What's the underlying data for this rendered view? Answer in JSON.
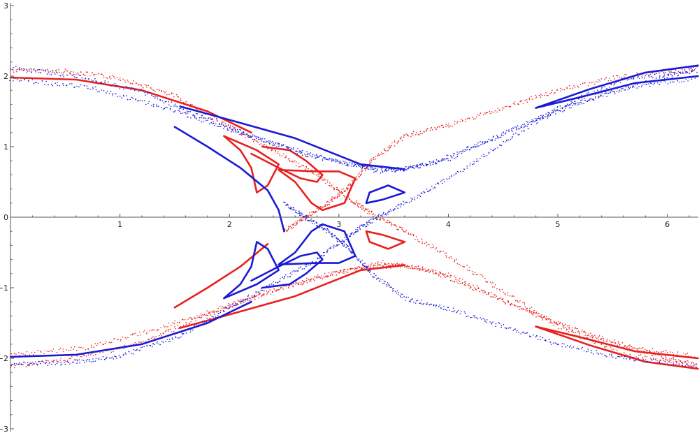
{
  "chart_data": {
    "type": "scatter",
    "title": "",
    "xlabel": "",
    "ylabel": "",
    "xlim": [
      0,
      6.2832
    ],
    "ylim": [
      -3,
      3
    ],
    "grid": false,
    "legend": "none",
    "x_ticks": [
      1,
      2,
      3,
      4,
      5,
      6
    ],
    "x_tick_labels": [
      "1",
      "2",
      "3",
      "4",
      "5",
      "6"
    ],
    "y_ticks": [
      -3,
      -2,
      -1,
      0,
      1,
      2,
      3
    ],
    "y_tick_labels": [
      "−3",
      "−2",
      "−1",
      "0",
      "1",
      "2",
      "3"
    ],
    "colors": {
      "red": "#e8201e",
      "blue": "#1a1ad6"
    },
    "series": [
      {
        "color": "red",
        "curves": [
          {
            "style": "scatter",
            "points": [
              [
                0,
                2.08
              ],
              [
                0.5,
                2.07
              ],
              [
                1.0,
                1.97
              ],
              [
                1.5,
                1.72
              ],
              [
                2.0,
                1.28
              ],
              [
                2.4,
                0.95
              ],
              [
                2.8,
                0.6
              ],
              [
                3.1,
                0.25
              ],
              [
                3.3,
                0.05
              ],
              [
                3.6,
                -0.2
              ],
              [
                4.0,
                -0.55
              ],
              [
                4.5,
                -1.05
              ],
              [
                5.0,
                -1.55
              ],
              [
                5.6,
                -1.95
              ],
              [
                6.28,
                -2.08
              ]
            ]
          },
          {
            "style": "scatter",
            "points": [
              [
                0,
                -2.12
              ],
              [
                0.6,
                -2.0
              ],
              [
                1.2,
                -1.78
              ],
              [
                1.7,
                -1.45
              ],
              [
                2.2,
                -1.15
              ],
              [
                2.7,
                -0.88
              ],
              [
                3.2,
                -0.72
              ],
              [
                3.6,
                -0.68
              ],
              [
                4.0,
                -0.82
              ],
              [
                4.6,
                -1.25
              ],
              [
                5.2,
                -1.62
              ],
              [
                5.8,
                -1.9
              ],
              [
                6.28,
                -2.12
              ]
            ]
          },
          {
            "style": "scatter",
            "points": [
              [
                0,
                -1.95
              ],
              [
                0.7,
                -1.85
              ],
              [
                1.3,
                -1.6
              ],
              [
                1.9,
                -1.3
              ],
              [
                2.4,
                -1.05
              ],
              [
                2.9,
                -0.82
              ],
              [
                3.4,
                -0.64
              ],
              [
                3.8,
                -0.74
              ],
              [
                4.3,
                -1.05
              ],
              [
                4.9,
                -1.45
              ],
              [
                5.5,
                -1.8
              ],
              [
                6.28,
                -1.98
              ]
            ]
          },
          {
            "style": "scatter",
            "points": [
              [
                2.5,
                -0.2
              ],
              [
                2.7,
                0.0
              ],
              [
                2.9,
                0.2
              ],
              [
                3.1,
                0.45
              ],
              [
                3.3,
                0.8
              ],
              [
                3.6,
                1.15
              ],
              [
                4.0,
                1.3
              ],
              [
                4.5,
                1.55
              ],
              [
                5.0,
                1.8
              ],
              [
                5.6,
                2.0
              ],
              [
                6.28,
                2.1
              ]
            ]
          },
          {
            "style": "line",
            "points": [
              [
                1.55,
                -1.57
              ],
              [
                2.0,
                -1.38
              ],
              [
                2.6,
                -1.12
              ],
              [
                3.2,
                -0.75
              ],
              [
                3.6,
                -0.68
              ]
            ]
          },
          {
            "style": "line",
            "points": [
              [
                1.5,
                -1.28
              ],
              [
                1.8,
                -1.0
              ],
              [
                2.1,
                -0.7
              ],
              [
                2.35,
                -0.38
              ]
            ]
          },
          {
            "style": "line",
            "points": [
              [
                2.45,
                0.67
              ],
              [
                2.6,
                0.5
              ],
              [
                2.75,
                0.2
              ],
              [
                2.85,
                0.1
              ],
              [
                3.05,
                0.2
              ],
              [
                3.15,
                0.55
              ],
              [
                3.0,
                0.65
              ],
              [
                2.8,
                0.65
              ],
              [
                2.45,
                0.67
              ]
            ]
          },
          {
            "style": "line",
            "points": [
              [
                1.95,
                1.15
              ],
              [
                2.25,
                0.95
              ],
              [
                2.45,
                0.75
              ],
              [
                2.35,
                0.45
              ],
              [
                2.25,
                0.35
              ],
              [
                2.2,
                0.7
              ],
              [
                2.1,
                0.95
              ],
              [
                1.95,
                1.15
              ]
            ]
          },
          {
            "style": "line",
            "points": [
              [
                2.2,
                0.9
              ],
              [
                2.45,
                0.7
              ],
              [
                2.65,
                0.55
              ],
              [
                2.8,
                0.5
              ],
              [
                2.85,
                0.6
              ],
              [
                2.7,
                0.8
              ],
              [
                2.55,
                0.95
              ],
              [
                2.3,
                1.0
              ]
            ]
          },
          {
            "style": "line",
            "points": [
              [
                3.25,
                -0.2
              ],
              [
                3.4,
                -0.25
              ],
              [
                3.6,
                -0.35
              ],
              [
                3.45,
                -0.45
              ],
              [
                3.28,
                -0.35
              ],
              [
                3.25,
                -0.2
              ]
            ]
          },
          {
            "style": "line",
            "points": [
              [
                4.8,
                -1.55
              ],
              [
                5.2,
                -1.7
              ],
              [
                5.7,
                -1.9
              ],
              [
                6.28,
                -2.0
              ]
            ]
          },
          {
            "style": "line",
            "points": [
              [
                4.8,
                -1.55
              ],
              [
                5.3,
                -1.82
              ],
              [
                5.8,
                -2.05
              ],
              [
                6.28,
                -2.15
              ]
            ]
          },
          {
            "style": "line",
            "points": [
              [
                0,
                1.98
              ],
              [
                0.6,
                1.95
              ],
              [
                1.2,
                1.8
              ],
              [
                1.8,
                1.5
              ],
              [
                2.2,
                1.2
              ]
            ]
          }
        ]
      },
      {
        "color": "blue",
        "curves": [
          {
            "style": "scatter",
            "points": [
              [
                0,
                2.12
              ],
              [
                0.6,
                2.0
              ],
              [
                1.2,
                1.78
              ],
              [
                1.7,
                1.45
              ],
              [
                2.2,
                1.15
              ],
              [
                2.7,
                0.88
              ],
              [
                3.2,
                0.72
              ],
              [
                3.6,
                0.68
              ],
              [
                4.0,
                0.82
              ],
              [
                4.6,
                1.25
              ],
              [
                5.2,
                1.62
              ],
              [
                5.8,
                1.9
              ],
              [
                6.28,
                2.12
              ]
            ]
          },
          {
            "style": "scatter",
            "points": [
              [
                0,
                1.95
              ],
              [
                0.7,
                1.85
              ],
              [
                1.3,
                1.6
              ],
              [
                1.9,
                1.3
              ],
              [
                2.4,
                1.05
              ],
              [
                2.9,
                0.82
              ],
              [
                3.4,
                0.64
              ],
              [
                3.8,
                0.74
              ],
              [
                4.3,
                1.05
              ],
              [
                4.9,
                1.45
              ],
              [
                5.5,
                1.8
              ],
              [
                6.28,
                1.98
              ]
            ]
          },
          {
            "style": "scatter",
            "points": [
              [
                0,
                -2.08
              ],
              [
                0.5,
                -2.07
              ],
              [
                1.0,
                -1.97
              ],
              [
                1.5,
                -1.72
              ],
              [
                2.0,
                -1.28
              ],
              [
                2.4,
                -0.95
              ],
              [
                2.8,
                -0.6
              ],
              [
                3.1,
                -0.25
              ],
              [
                3.3,
                -0.05
              ],
              [
                3.6,
                0.2
              ],
              [
                4.0,
                0.55
              ],
              [
                4.5,
                1.05
              ],
              [
                5.0,
                1.55
              ],
              [
                5.6,
                1.95
              ],
              [
                6.28,
                2.08
              ]
            ]
          },
          {
            "style": "scatter",
            "points": [
              [
                2.5,
                0.2
              ],
              [
                2.7,
                0.0
              ],
              [
                2.9,
                -0.2
              ],
              [
                3.1,
                -0.45
              ],
              [
                3.3,
                -0.8
              ],
              [
                3.6,
                -1.15
              ],
              [
                4.0,
                -1.3
              ],
              [
                4.5,
                -1.55
              ],
              [
                5.0,
                -1.8
              ],
              [
                5.6,
                -2.0
              ],
              [
                6.28,
                -2.1
              ]
            ]
          },
          {
            "style": "line",
            "points": [
              [
                1.55,
                1.57
              ],
              [
                2.0,
                1.38
              ],
              [
                2.6,
                1.12
              ],
              [
                3.2,
                0.75
              ],
              [
                3.6,
                0.68
              ]
            ]
          },
          {
            "style": "line",
            "points": [
              [
                1.5,
                1.28
              ],
              [
                1.8,
                1.0
              ],
              [
                2.1,
                0.7
              ],
              [
                2.35,
                0.38
              ],
              [
                2.45,
                0.1
              ],
              [
                2.5,
                -0.2
              ]
            ]
          },
          {
            "style": "line",
            "points": [
              [
                2.45,
                -0.67
              ],
              [
                2.6,
                -0.5
              ],
              [
                2.75,
                -0.2
              ],
              [
                2.85,
                -0.1
              ],
              [
                3.05,
                -0.2
              ],
              [
                3.15,
                -0.55
              ],
              [
                3.0,
                -0.65
              ],
              [
                2.8,
                -0.65
              ],
              [
                2.45,
                -0.67
              ]
            ]
          },
          {
            "style": "line",
            "points": [
              [
                1.95,
                -1.15
              ],
              [
                2.25,
                -0.95
              ],
              [
                2.45,
                -0.75
              ],
              [
                2.35,
                -0.45
              ],
              [
                2.25,
                -0.35
              ],
              [
                2.2,
                -0.7
              ],
              [
                2.1,
                -0.95
              ],
              [
                1.95,
                -1.15
              ]
            ]
          },
          {
            "style": "line",
            "points": [
              [
                2.2,
                -0.9
              ],
              [
                2.45,
                -0.7
              ],
              [
                2.65,
                -0.55
              ],
              [
                2.8,
                -0.5
              ],
              [
                2.85,
                -0.6
              ],
              [
                2.7,
                -0.8
              ],
              [
                2.55,
                -0.95
              ],
              [
                2.3,
                -1.0
              ]
            ]
          },
          {
            "style": "line",
            "points": [
              [
                3.25,
                0.2
              ],
              [
                3.4,
                0.25
              ],
              [
                3.6,
                0.35
              ],
              [
                3.45,
                0.45
              ],
              [
                3.28,
                0.35
              ],
              [
                3.25,
                0.2
              ]
            ]
          },
          {
            "style": "line",
            "points": [
              [
                4.8,
                1.55
              ],
              [
                5.2,
                1.7
              ],
              [
                5.7,
                1.9
              ],
              [
                6.28,
                2.0
              ]
            ]
          },
          {
            "style": "line",
            "points": [
              [
                4.8,
                1.55
              ],
              [
                5.3,
                1.82
              ],
              [
                5.8,
                2.05
              ],
              [
                6.28,
                2.15
              ]
            ]
          },
          {
            "style": "line",
            "points": [
              [
                0,
                -1.98
              ],
              [
                0.6,
                -1.95
              ],
              [
                1.2,
                -1.8
              ],
              [
                1.8,
                -1.5
              ],
              [
                2.2,
                -1.2
              ]
            ]
          }
        ]
      }
    ]
  }
}
